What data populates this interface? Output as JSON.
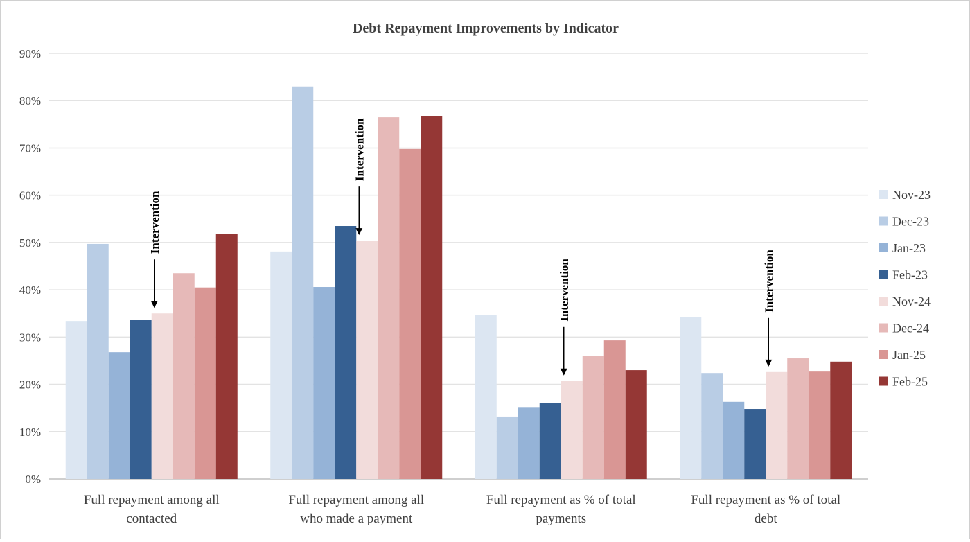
{
  "chart_data": {
    "type": "bar",
    "title": "Debt Repayment Improvements by Indicator",
    "xlabel": "",
    "ylabel": "",
    "ylim": [
      0,
      90
    ],
    "yticks": [
      "0%",
      "10%",
      "20%",
      "30%",
      "40%",
      "50%",
      "60%",
      "70%",
      "80%",
      "90%"
    ],
    "grid": true,
    "legend_position": "right",
    "categories": [
      [
        "Full repayment among all",
        "contacted"
      ],
      [
        "Full repayment among all",
        "who made a payment"
      ],
      [
        "Full repayment as % of total",
        "payments"
      ],
      [
        "Full repayment as % of total",
        "debt"
      ]
    ],
    "series": [
      {
        "name": "Nov-23",
        "color": "#dce6f2",
        "values": [
          33.4,
          48.1,
          34.7,
          34.2
        ]
      },
      {
        "name": "Dec-23",
        "color": "#b9cde5",
        "values": [
          49.7,
          83.0,
          13.2,
          22.4
        ]
      },
      {
        "name": "Jan-23",
        "color": "#95b3d7",
        "values": [
          26.8,
          40.6,
          15.2,
          16.3
        ]
      },
      {
        "name": "Feb-23",
        "color": "#366092",
        "values": [
          33.6,
          53.5,
          16.1,
          14.8
        ]
      },
      {
        "name": "Nov-24",
        "color": "#f2dcdb",
        "values": [
          35.0,
          50.4,
          20.7,
          22.6
        ]
      },
      {
        "name": "Dec-24",
        "color": "#e6b9b8",
        "values": [
          43.5,
          76.5,
          26.0,
          25.5
        ]
      },
      {
        "name": "Jan-25",
        "color": "#d99694",
        "values": [
          40.5,
          69.8,
          29.3,
          22.7
        ]
      },
      {
        "name": "Feb-25",
        "color": "#953735",
        "values": [
          51.8,
          76.7,
          23.0,
          24.8
        ]
      }
    ],
    "annotations": [
      {
        "text": "Intervention",
        "category_index": 0,
        "points_to_series": "Nov-24"
      },
      {
        "text": "Intervention",
        "category_index": 1,
        "points_to_series": "Nov-24"
      },
      {
        "text": "Intervention",
        "category_index": 2,
        "points_to_series": "Nov-24"
      },
      {
        "text": "Intervention",
        "category_index": 3,
        "points_to_series": "Nov-24"
      }
    ]
  }
}
